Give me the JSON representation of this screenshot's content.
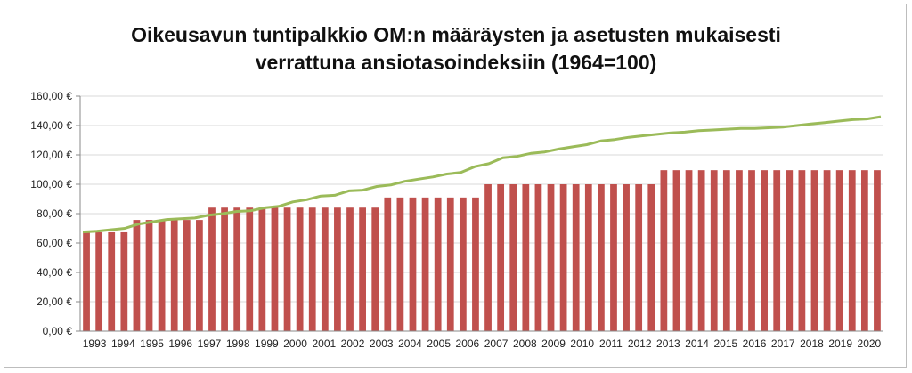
{
  "chart_data": {
    "type": "bar",
    "title_line1": "Oikeusavun tuntipalkkio OM:n määräysten ja asetusten mukaisesti",
    "title_line2": "verrattuna ansiotasoindeksiin (1964=100)",
    "xlabel": "",
    "ylabel": "",
    "ylim": [
      0,
      160
    ],
    "yticks": [
      "0,00 €",
      "20,00 €",
      "40,00 €",
      "60,00 €",
      "80,00 €",
      "100,00 €",
      "120,00 €",
      "140,00 €",
      "160,00 €"
    ],
    "year_labels": [
      "1993",
      "1994",
      "1995",
      "1996",
      "1997",
      "1998",
      "1999",
      "2000",
      "2001",
      "2002",
      "2003",
      "2004",
      "2005",
      "2006",
      "2007",
      "2008",
      "2009",
      "2010",
      "2011",
      "2012",
      "2013",
      "2014",
      "2015",
      "2016",
      "2017",
      "2018",
      "2019",
      "2020"
    ],
    "grid": true,
    "legend": "none",
    "bar_color": "#c0504d",
    "line_color": "#9bbb59",
    "series": [
      {
        "type": "bar",
        "values": [
          67.3,
          67.3,
          67.3,
          67.3,
          75.7,
          75.7,
          75.7,
          75.7,
          75.7,
          75.7,
          84.1,
          84.1,
          84.1,
          84.1,
          84.1,
          84.1,
          84.1,
          84.1,
          84.1,
          84.1,
          84.1,
          84.1,
          84.1,
          84.1,
          91.0,
          91.0,
          91.0,
          91.0,
          91.0,
          91.0,
          91.0,
          91.0,
          100,
          100,
          100,
          100,
          100,
          100,
          100,
          100,
          100,
          100,
          100,
          100,
          100,
          100,
          109.6,
          109.6,
          109.6,
          109.6,
          109.6,
          109.6,
          109.6,
          109.6,
          109.6,
          109.6,
          109.6,
          109.6,
          109.6,
          109.6,
          109.6,
          109.6,
          109.6,
          109.6
        ]
      },
      {
        "type": "line",
        "values": [
          67.5,
          68.0,
          69.0,
          70.0,
          73.0,
          74.5,
          76.0,
          76.5,
          77.0,
          79.0,
          80.0,
          81.5,
          82.0,
          84.0,
          85.0,
          88.0,
          89.5,
          92.0,
          92.5,
          95.5,
          96.0,
          98.5,
          99.5,
          102.0,
          103.5,
          105.0,
          107.0,
          108.0,
          112.0,
          114.0,
          118.0,
          119.0,
          121.0,
          122.0,
          124.0,
          125.5,
          127.0,
          129.5,
          130.5,
          132.0,
          133.0,
          134.0,
          135.0,
          135.5,
          136.5,
          137.0,
          137.5,
          138.0,
          138.0,
          138.5,
          139.0,
          140.0,
          141.0,
          142.0,
          143.0,
          144.0,
          144.5,
          146.0
        ]
      }
    ]
  }
}
